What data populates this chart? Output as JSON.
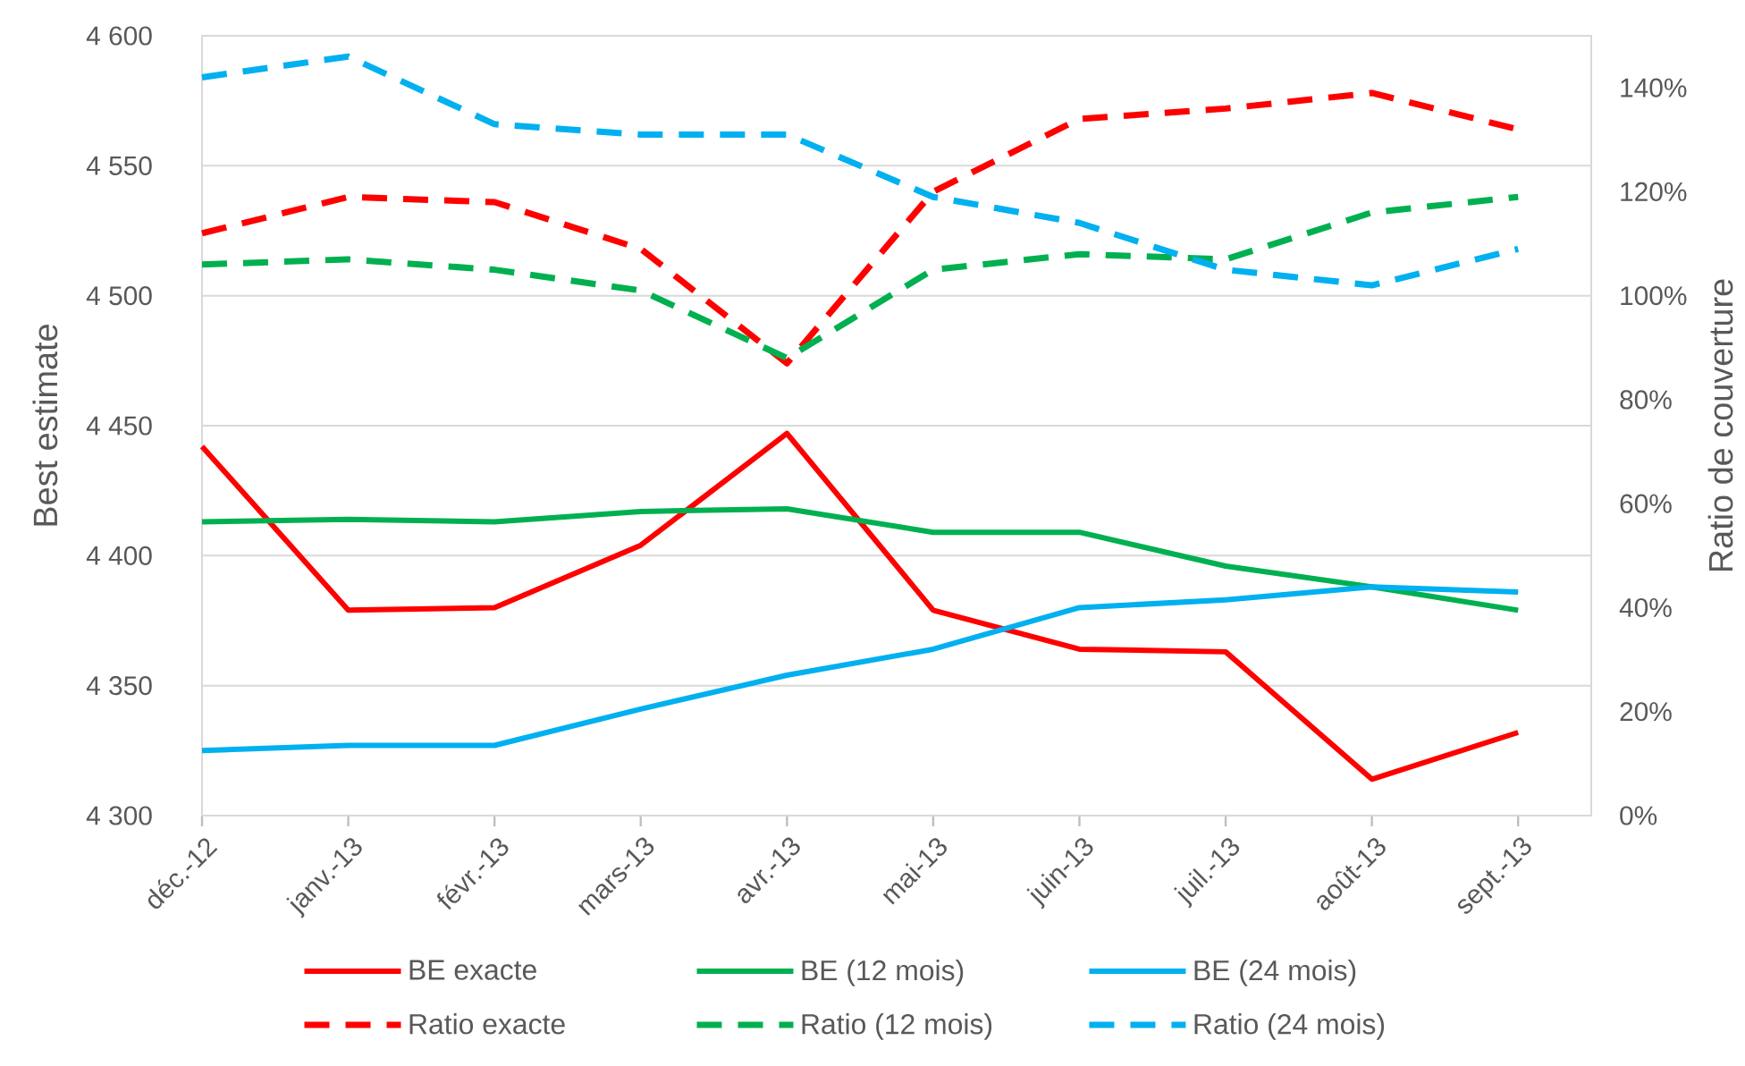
{
  "chart_data": {
    "type": "line",
    "ylabel": "Best estimate",
    "y2label": "Ratio de couverture",
    "categories": [
      "déc.-12",
      "janv.-13",
      "févr.-13",
      "mars-13",
      "avr.-13",
      "mai-13",
      "juin-13",
      "juil.-13",
      "août-13",
      "sept.-13"
    ],
    "series": [
      {
        "name": "BE exacte",
        "color": "#ff0000",
        "line_style": "solid",
        "values": [
          4442,
          4379,
          4380,
          4404,
          4447,
          4379,
          4364,
          4363,
          4314,
          4332
        ]
      },
      {
        "name": "BE (12 mois)",
        "color": "#00b050",
        "line_style": "solid",
        "values": [
          4413,
          4414,
          4413,
          4417,
          4418,
          4409,
          4409,
          4396,
          4388,
          4379
        ]
      },
      {
        "name": "BE (24 mois)",
        "color": "#00b0f0",
        "line_style": "solid",
        "values": [
          4325,
          4327,
          4327,
          4341,
          4354,
          4364,
          4380,
          4383,
          4388,
          4386
        ]
      },
      {
        "name": "Ratio exacte",
        "color": "#ff0000",
        "line_style": "dashed",
        "axis": "y2",
        "values": [
          112,
          119,
          118,
          109,
          87,
          120,
          134,
          136,
          139,
          132
        ]
      },
      {
        "name": "Ratio (12 mois)",
        "color": "#00b050",
        "line_style": "dashed",
        "axis": "y2",
        "values": [
          106,
          107,
          105,
          101,
          88,
          105,
          108,
          107,
          116,
          119
        ]
      },
      {
        "name": "Ratio (24 mois)",
        "color": "#00b0f0",
        "line_style": "dashed",
        "axis": "y2",
        "values": [
          142,
          146,
          133,
          131,
          131,
          119,
          114,
          105,
          102,
          109
        ]
      }
    ],
    "ylim": [
      4300,
      4600
    ],
    "yticks": [
      {
        "value": 4300,
        "label": "4 300"
      },
      {
        "value": 4350,
        "label": "4 350"
      },
      {
        "value": 4400,
        "label": "4 400"
      },
      {
        "value": 4450,
        "label": "4 450"
      },
      {
        "value": 4500,
        "label": "4 500"
      },
      {
        "value": 4550,
        "label": "4 550"
      },
      {
        "value": 4600,
        "label": "4 600"
      }
    ],
    "y2lim": [
      0,
      150
    ],
    "y2ticks": [
      {
        "value": 0,
        "label": "0%"
      },
      {
        "value": 20,
        "label": "20%"
      },
      {
        "value": 40,
        "label": "40%"
      },
      {
        "value": 60,
        "label": "60%"
      },
      {
        "value": 80,
        "label": "80%"
      },
      {
        "value": 100,
        "label": "100%"
      },
      {
        "value": 120,
        "label": "120%"
      },
      {
        "value": 140,
        "label": "140%"
      }
    ],
    "grid": "y",
    "legend": "bottom"
  }
}
